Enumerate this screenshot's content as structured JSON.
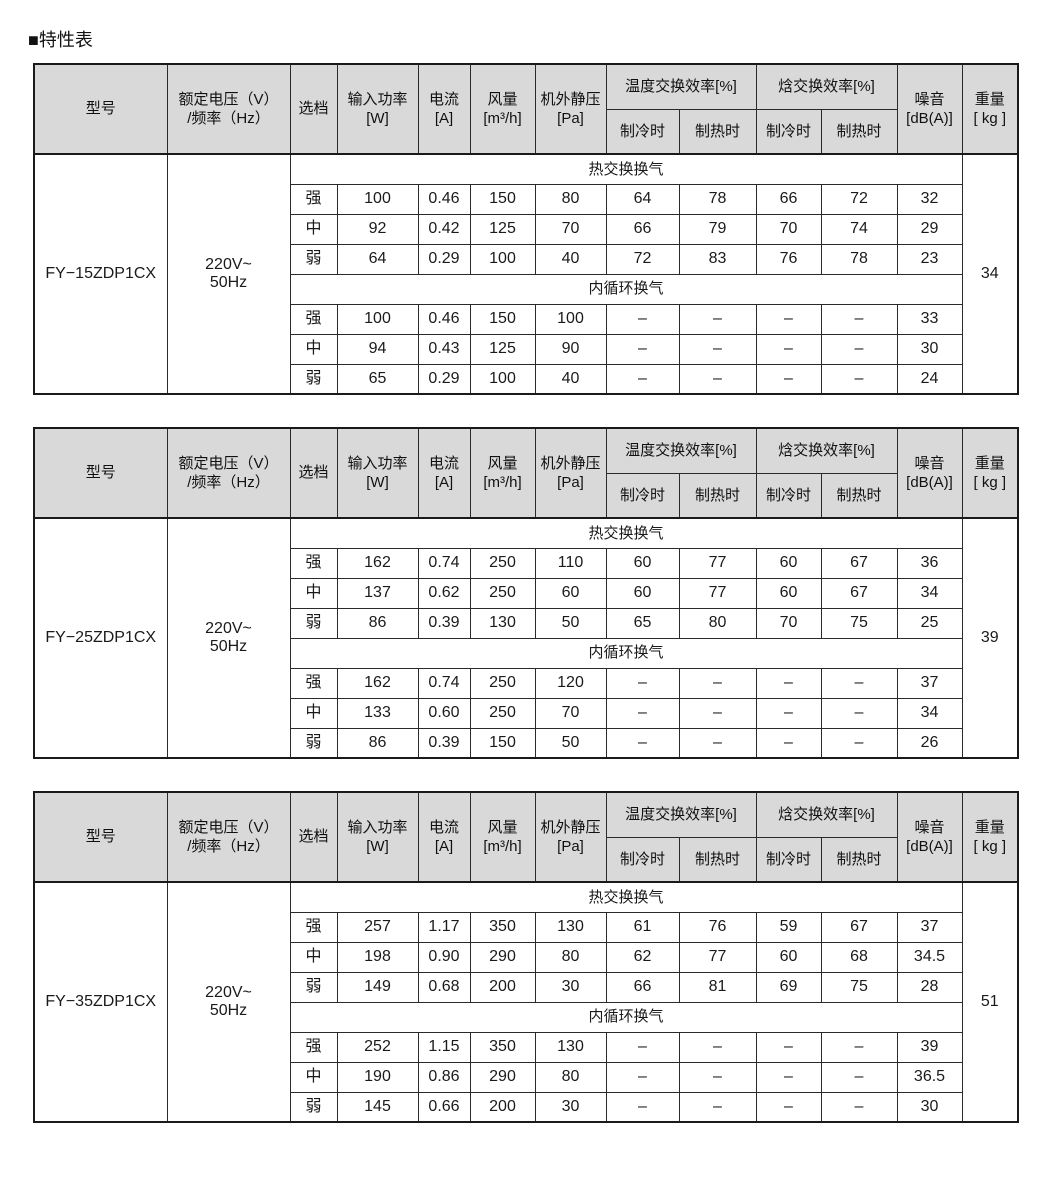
{
  "title": "■特性表",
  "colors": {
    "header_bg": "#d9d9d9",
    "border": "#1a1a1a",
    "text": "#1a1a1a",
    "page_bg": "#ffffff"
  },
  "columns": {
    "model": "型号",
    "voltage": "额定电压（V）\n/频率（Hz）",
    "gear": "选档",
    "power": "输入功率\n[W]",
    "current": "电流\n[A]",
    "airflow": "风量\n[m³/h]",
    "static_pressure": "机外静压\n[Pa]",
    "temp_exchange": "温度交换效率[%]",
    "enthalpy_exchange": "焓交换效率[%]",
    "cooling": "制冷时",
    "heating": "制热时",
    "noise": "噪音\n[dB(A)]",
    "weight": "重量\n[ kg ]"
  },
  "tables": [
    {
      "model": "FY−15ZDP1CX",
      "voltage": "220V~\n50Hz",
      "weight_kg": "34",
      "sections": [
        {
          "label": "热交换换气",
          "rows": [
            [
              "强",
              "100",
              "0.46",
              "150",
              "80",
              "64",
              "78",
              "66",
              "72",
              "32"
            ],
            [
              "中",
              "92",
              "0.42",
              "125",
              "70",
              "66",
              "79",
              "70",
              "74",
              "29"
            ],
            [
              "弱",
              "64",
              "0.29",
              "100",
              "40",
              "72",
              "83",
              "76",
              "78",
              "23"
            ]
          ]
        },
        {
          "label": "内循环换气",
          "rows": [
            [
              "强",
              "100",
              "0.46",
              "150",
              "100",
              "–",
              "–",
              "–",
              "–",
              "33"
            ],
            [
              "中",
              "94",
              "0.43",
              "125",
              "90",
              "–",
              "–",
              "–",
              "–",
              "30"
            ],
            [
              "弱",
              "65",
              "0.29",
              "100",
              "40",
              "–",
              "–",
              "–",
              "–",
              "24"
            ]
          ]
        }
      ]
    },
    {
      "model": "FY−25ZDP1CX",
      "voltage": "220V~\n50Hz",
      "weight_kg": "39",
      "sections": [
        {
          "label": "热交换换气",
          "rows": [
            [
              "强",
              "162",
              "0.74",
              "250",
              "110",
              "60",
              "77",
              "60",
              "67",
              "36"
            ],
            [
              "中",
              "137",
              "0.62",
              "250",
              "60",
              "60",
              "77",
              "60",
              "67",
              "34"
            ],
            [
              "弱",
              "86",
              "0.39",
              "130",
              "50",
              "65",
              "80",
              "70",
              "75",
              "25"
            ]
          ]
        },
        {
          "label": "内循环换气",
          "rows": [
            [
              "强",
              "162",
              "0.74",
              "250",
              "120",
              "–",
              "–",
              "–",
              "–",
              "37"
            ],
            [
              "中",
              "133",
              "0.60",
              "250",
              "70",
              "–",
              "–",
              "–",
              "–",
              "34"
            ],
            [
              "弱",
              "86",
              "0.39",
              "150",
              "50",
              "–",
              "–",
              "–",
              "–",
              "26"
            ]
          ]
        }
      ]
    },
    {
      "model": "FY−35ZDP1CX",
      "voltage": "220V~\n50Hz",
      "weight_kg": "51",
      "sections": [
        {
          "label": "热交换换气",
          "rows": [
            [
              "强",
              "257",
              "1.17",
              "350",
              "130",
              "61",
              "76",
              "59",
              "67",
              "37"
            ],
            [
              "中",
              "198",
              "0.90",
              "290",
              "80",
              "62",
              "77",
              "60",
              "68",
              "34.5"
            ],
            [
              "弱",
              "149",
              "0.68",
              "200",
              "30",
              "66",
              "81",
              "69",
              "75",
              "28"
            ]
          ]
        },
        {
          "label": "内循环换气",
          "rows": [
            [
              "强",
              "252",
              "1.15",
              "350",
              "130",
              "–",
              "–",
              "–",
              "–",
              "39"
            ],
            [
              "中",
              "190",
              "0.86",
              "290",
              "80",
              "–",
              "–",
              "–",
              "–",
              "36.5"
            ],
            [
              "弱",
              "145",
              "0.66",
              "200",
              "30",
              "–",
              "–",
              "–",
              "–",
              "30"
            ]
          ]
        }
      ]
    }
  ]
}
